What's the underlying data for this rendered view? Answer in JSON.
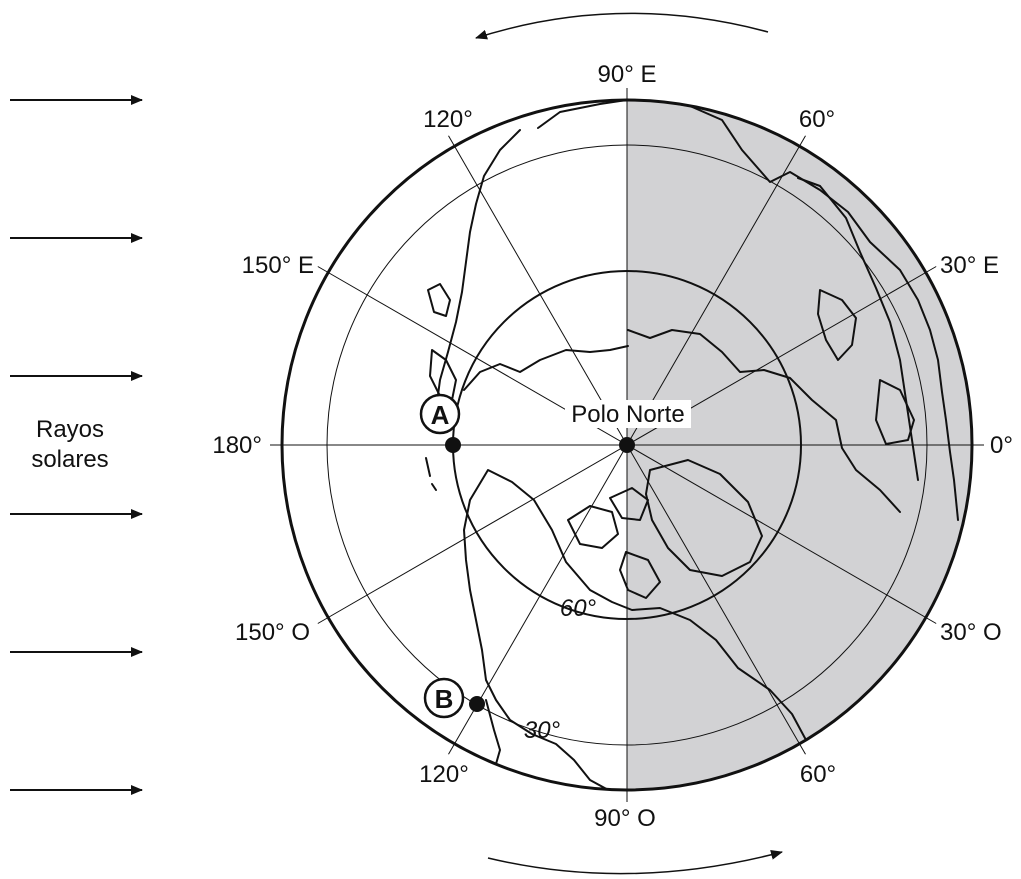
{
  "colors": {
    "night_shade": "#d2d2d4",
    "ink": "#111111",
    "background": "#ffffff"
  },
  "sun": {
    "label_line1": "Rayos",
    "label_line2": "solares",
    "ray_count": 6
  },
  "rotation": {
    "top_arrow_direction": "leftward",
    "bottom_arrow_direction": "rightward"
  },
  "meridians": [
    {
      "id": "90e",
      "label": "90° E"
    },
    {
      "id": "60-ne",
      "label": "60°"
    },
    {
      "id": "30e",
      "label": "30° E"
    },
    {
      "id": "0",
      "label": "0°"
    },
    {
      "id": "30o",
      "label": "30° O"
    },
    {
      "id": "60-se",
      "label": "60°"
    },
    {
      "id": "90o",
      "label": "90° O"
    },
    {
      "id": "120-sw",
      "label": "120°"
    },
    {
      "id": "150o",
      "label": "150° O"
    },
    {
      "id": "180",
      "label": "180°"
    },
    {
      "id": "150e",
      "label": "150° E"
    },
    {
      "id": "120-nw",
      "label": "120°"
    }
  ],
  "parallels": [
    {
      "id": "p60",
      "label": "60°"
    },
    {
      "id": "p30",
      "label": "30°"
    }
  ],
  "pole": {
    "label": "Polo Norte"
  },
  "points": [
    {
      "id": "a",
      "label": "A"
    },
    {
      "id": "b",
      "label": "B"
    }
  ]
}
